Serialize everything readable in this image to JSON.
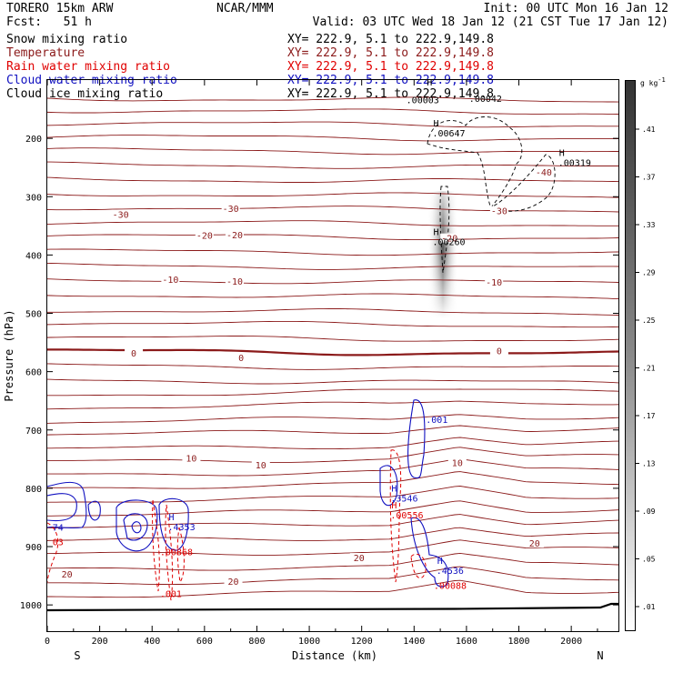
{
  "header": {
    "model": "TORERO  15km ARW",
    "center": "NCAR/MMM",
    "init": "Init: 00 UTC Mon 16 Jan 12",
    "fcst": "Fcst:   51 h",
    "valid": "Valid: 03 UTC Wed 18 Jan 12 (21 CST Tue 17 Jan 12)"
  },
  "legend": [
    {
      "label": "Snow mixing ratio",
      "color": "#000000",
      "xy": "XY= 222.9,  5.1 to 222.9,149.8"
    },
    {
      "label": "Temperature",
      "color": "#8b1a1a",
      "xy": "XY= 222.9,  5.1 to 222.9,149.8"
    },
    {
      "label": "Rain water mixing ratio",
      "color": "#e00000",
      "xy": "XY= 222.9,  5.1 to 222.9,149.8"
    },
    {
      "label": "Cloud water mixing ratio",
      "color": "#1010c0",
      "xy": "XY= 222.9,  5.1 to 222.9,149.8"
    },
    {
      "label": "Cloud ice mixing ratio",
      "color": "#000000",
      "xy": "XY= 222.9,  5.1 to 222.9,149.8"
    }
  ],
  "colorbar": {
    "unit": "g kg",
    "unit_exp": "-1",
    "ticks": [
      ".41",
      ".37",
      ".33",
      ".29",
      ".25",
      ".21",
      ".17",
      ".13",
      ".09",
      ".05",
      ".01"
    ]
  },
  "chart_data": {
    "type": "contour",
    "xlabel": "Distance (km)",
    "ylabel": "Pressure (hPa)",
    "xlim": [
      0,
      2180
    ],
    "ylim": [
      100,
      1045
    ],
    "y_scale": "linear-inverted",
    "x_ticks": [
      "0",
      "200",
      "400",
      "600",
      "800",
      "1000",
      "1200",
      "1400",
      "1600",
      "1800",
      "2000"
    ],
    "y_ticks": [
      "200",
      "300",
      "400",
      "500",
      "600",
      "700",
      "800",
      "900",
      "1000"
    ],
    "x_end_labels": {
      "left": "S",
      "right": "N"
    },
    "temperature_labels": [
      {
        "text": "-30",
        "x": 280,
        "p": 333
      },
      {
        "text": "-30",
        "x": 700,
        "p": 323
      },
      {
        "text": "-20",
        "x": 600,
        "p": 369
      },
      {
        "text": "-20",
        "x": 715,
        "p": 368
      },
      {
        "text": "-10",
        "x": 470,
        "p": 445
      },
      {
        "text": "-10",
        "x": 715,
        "p": 448
      },
      {
        "text": "-10",
        "x": 1705,
        "p": 449
      },
      {
        "text": "-20",
        "x": 1535,
        "p": 374
      },
      {
        "text": "-30",
        "x": 1725,
        "p": 327
      },
      {
        "text": "-40",
        "x": 1895,
        "p": 261
      },
      {
        "text": "0",
        "x": 330,
        "p": 571
      },
      {
        "text": "0",
        "x": 740,
        "p": 579
      },
      {
        "text": "0",
        "x": 1725,
        "p": 567
      },
      {
        "text": "10",
        "x": 550,
        "p": 751
      },
      {
        "text": "10",
        "x": 815,
        "p": 763
      },
      {
        "text": "10",
        "x": 1565,
        "p": 759
      },
      {
        "text": "20",
        "x": 1190,
        "p": 922
      },
      {
        "text": "20",
        "x": 1860,
        "p": 897
      },
      {
        "text": "20",
        "x": 710,
        "p": 962
      },
      {
        "text": "20",
        "x": 75,
        "p": 950
      }
    ],
    "extrema_labels": [
      {
        "letter": "H",
        "value": ".00647",
        "x": 1470,
        "p": 192,
        "color": "#000000"
      },
      {
        "letter": "H",
        "value": ".00319",
        "x": 1950,
        "p": 243,
        "color": "#000000"
      },
      {
        "letter": "H",
        "value": ".00260",
        "x": 1470,
        "p": 378,
        "color": "#000000"
      },
      {
        "letter": "",
        "value": ".001",
        "x": 1445,
        "p": 683,
        "color": "#1010c0"
      },
      {
        "letter": "H",
        "value": ".3546",
        "x": 1310,
        "p": 818,
        "color": "#1010c0"
      },
      {
        "letter": "H",
        "value": ".00556",
        "x": 1310,
        "p": 847,
        "color": "#e00000"
      },
      {
        "letter": "H",
        "value": ".4536",
        "x": 1485,
        "p": 942,
        "color": "#1010c0"
      },
      {
        "letter": "",
        "value": ".00088",
        "x": 1475,
        "p": 968,
        "color": "#e00000"
      },
      {
        "letter": "H",
        "value": ".4353",
        "x": 460,
        "p": 867,
        "color": "#1010c0"
      },
      {
        "letter": "",
        "value": ".00868",
        "x": 430,
        "p": 910,
        "color": "#e00000"
      },
      {
        "letter": "",
        "value": ".001",
        "x": 430,
        "p": 982,
        "color": "#e00000"
      },
      {
        "letter": "",
        "value": "74",
        "x": 20,
        "p": 868,
        "color": "#1010c0"
      },
      {
        "letter": "",
        "value": "03",
        "x": 20,
        "p": 893,
        "color": "#e00000"
      },
      {
        "letter": "H",
        "value": "",
        "x": 1445,
        "p": 122,
        "color": "#000000"
      },
      {
        "letter": "",
        "value": ".00003",
        "x": 1370,
        "p": 135,
        "color": "#000000"
      },
      {
        "letter": "",
        "value": ".00042",
        "x": 1610,
        "p": 133,
        "color": "#000000"
      }
    ],
    "colors": {
      "temperature": "#8b1a1a",
      "rain": "#e00000",
      "cloud_water": "#1010c0",
      "cloud_ice": "#000000",
      "terrain": "#000000"
    }
  }
}
